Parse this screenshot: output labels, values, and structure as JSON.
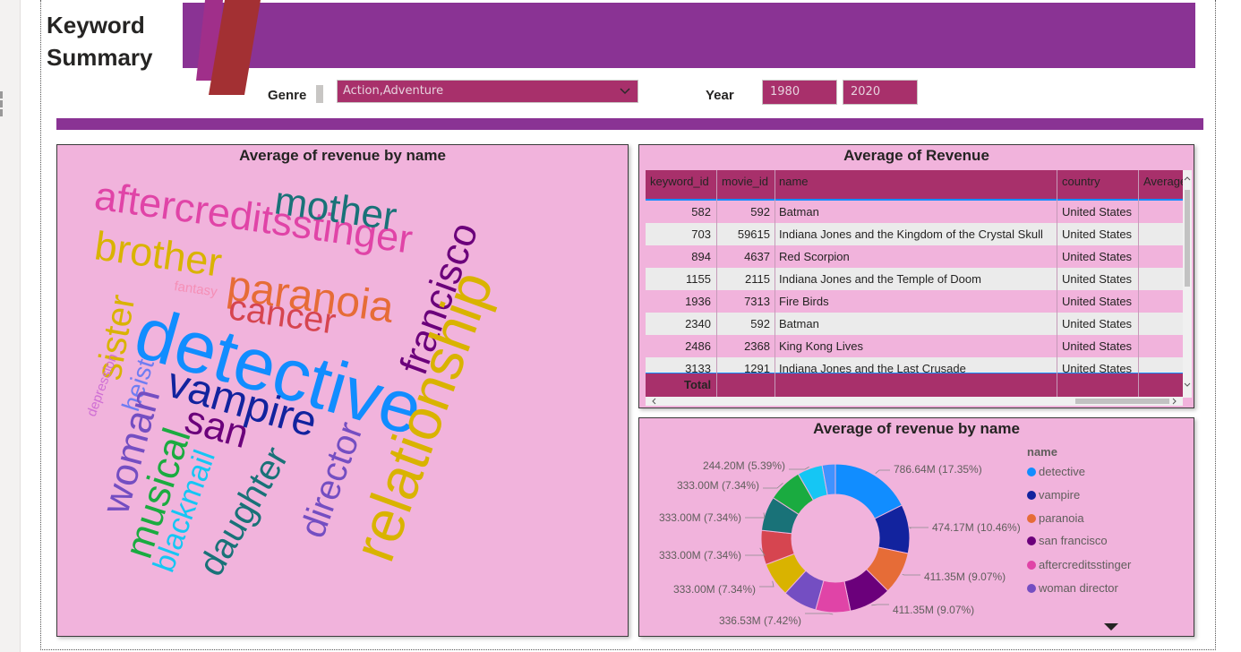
{
  "page": {
    "title_line1": "Keyword",
    "title_line2": "Summary"
  },
  "colors": {
    "banner": "#8a3394",
    "slicer_fill": "#a8306b",
    "panel_bg": "#f1b3dc",
    "header_fill": "#a8306b"
  },
  "filters": {
    "genre_label": "Genre",
    "genre_value": "Action,Adventure",
    "year_label": "Year",
    "year_from": "1980",
    "year_to": "2020"
  },
  "wordcloud": {
    "title": "Average of revenue by name",
    "words": [
      "aftercreditsstinger",
      "mother",
      "brother",
      "paranoia",
      "cancer",
      "fantasy",
      "sister",
      "detective",
      "francisco",
      "relationship",
      "depression",
      "heist",
      "vampire",
      "san",
      "woman",
      "musical",
      "blackmail",
      "daughter",
      "director"
    ]
  },
  "table": {
    "title": "Average of Revenue",
    "columns": [
      "keyword_id",
      "movie_id",
      "name",
      "country",
      "Average"
    ],
    "rows": [
      {
        "keyword_id": "582",
        "movie_id": "592",
        "name": "Batman",
        "country": "United States"
      },
      {
        "keyword_id": "703",
        "movie_id": "59615",
        "name": "Indiana Jones and the Kingdom of the Crystal Skull",
        "country": "United States"
      },
      {
        "keyword_id": "894",
        "movie_id": "4637",
        "name": "Red Scorpion",
        "country": "United States"
      },
      {
        "keyword_id": "1155",
        "movie_id": "2115",
        "name": "Indiana Jones and the Temple of Doom",
        "country": "United States"
      },
      {
        "keyword_id": "1936",
        "movie_id": "7313",
        "name": "Fire Birds",
        "country": "United States"
      },
      {
        "keyword_id": "2340",
        "movie_id": "592",
        "name": "Batman",
        "country": "United States"
      },
      {
        "keyword_id": "2486",
        "movie_id": "2368",
        "name": "King Kong Lives",
        "country": "United States"
      },
      {
        "keyword_id": "3133",
        "movie_id": "1291",
        "name": "Indiana Jones and the Last Crusade",
        "country": "United States"
      }
    ],
    "total_label": "Total"
  },
  "chart_data": {
    "type": "pie",
    "donut": true,
    "title": "Average of revenue by name",
    "legend_title": "name",
    "legend_position": "right",
    "legend": [
      "detective",
      "vampire",
      "paranoia",
      "san francisco",
      "aftercreditsstinger",
      "woman director"
    ],
    "slices": [
      {
        "value": 786.64,
        "label": "786.64M (17.35%)",
        "color": "#118dff"
      },
      {
        "value": 474.17,
        "label": "474.17M (10.46%)",
        "color": "#12239e"
      },
      {
        "value": 411.35,
        "label": "411.35M (9.07%)",
        "color": "#e66c37"
      },
      {
        "value": 411.35,
        "label": "411.35M (9.07%)",
        "color": "#6b007b"
      },
      {
        "value": 336.53,
        "label": "336.53M (7.42%)",
        "color": "#e044a7"
      },
      {
        "value": 333.0,
        "label": "",
        "color": "#744ec2"
      },
      {
        "value": 333.0,
        "label": "333.00M (7.34%)",
        "color": "#d9b300"
      },
      {
        "value": 333.0,
        "label": "333.00M (7.34%)",
        "color": "#d64550"
      },
      {
        "value": 333.0,
        "label": "333.00M (7.34%)",
        "color": "#197278"
      },
      {
        "value": 333.0,
        "label": "333.00M (7.34%)",
        "color": "#1aab40"
      },
      {
        "value": 244.2,
        "label": "244.20M (5.39%)",
        "color": "#15c6f4"
      },
      {
        "value": 128.0,
        "label": "",
        "color": "#4092ff"
      }
    ],
    "legend_colors": [
      "#118dff",
      "#12239e",
      "#e66c37",
      "#6b007b",
      "#e044a7",
      "#744ec2"
    ]
  }
}
